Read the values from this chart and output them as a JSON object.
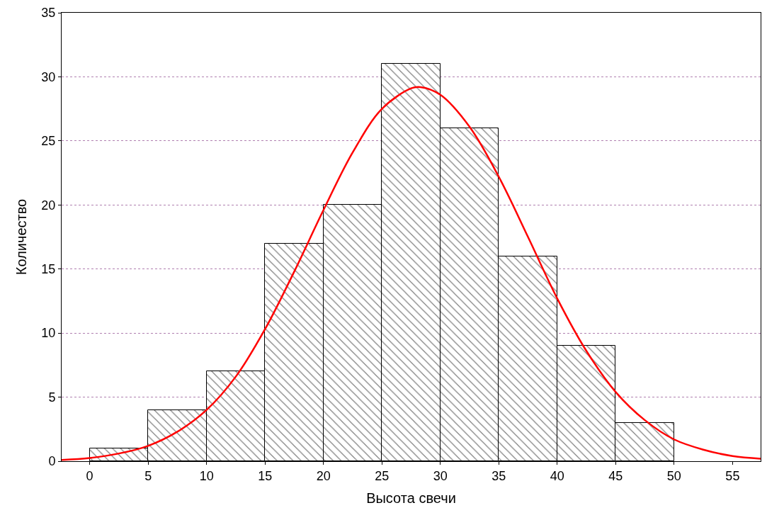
{
  "chart_data": {
    "type": "histogram",
    "xlabel": "Высота свечи",
    "ylabel": "Количество",
    "color": "#000000",
    "bins": [
      0,
      5,
      10,
      15,
      20,
      25,
      30,
      35,
      40,
      45,
      50
    ],
    "values": [
      1,
      4,
      7,
      17,
      20,
      31,
      26,
      16,
      9,
      3
    ],
    "series": [
      {
        "type": "line",
        "color": "#ff0000",
        "x": [
          -2.4,
          0,
          2.5,
          5,
          7.5,
          10,
          12.5,
          15,
          17.5,
          20,
          22.5,
          25,
          27.5,
          28.3,
          30,
          32.5,
          35,
          37.5,
          40,
          42.5,
          45,
          47.5,
          50,
          52.5,
          55,
          57.4
        ],
        "values": [
          0.1,
          0.25,
          0.6,
          1.2,
          2.3,
          4.0,
          6.6,
          10.3,
          14.8,
          19.6,
          24.1,
          27.5,
          29.1,
          29.2,
          28.6,
          26.1,
          22.2,
          17.5,
          12.7,
          8.6,
          5.4,
          3.2,
          1.7,
          0.9,
          0.4,
          0.2
        ]
      }
    ],
    "xlim": [
      -2.4,
      57.4
    ],
    "xticks": [
      0,
      5,
      10,
      15,
      20,
      25,
      30,
      35,
      40,
      45,
      50,
      55
    ],
    "ylim": [
      0,
      35
    ],
    "yticks": [
      0,
      5,
      10,
      15,
      20,
      25,
      30,
      35
    ],
    "grid": "y"
  }
}
